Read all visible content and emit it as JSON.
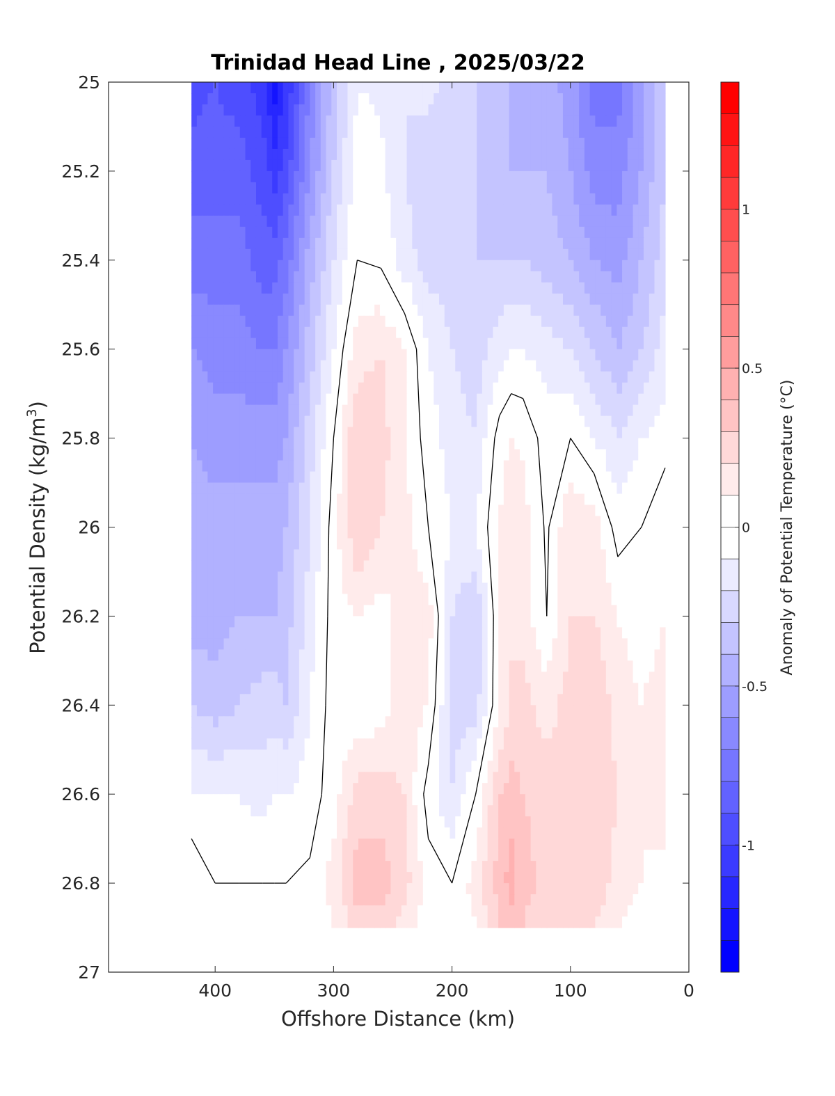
{
  "chart_data": {
    "type": "heatmap",
    "title": "Trinidad Head Line , 2025/03/22",
    "xlabel": "Offshore Distance (km)",
    "ylabel_main": "Potential Density (kg/m",
    "ylabel_sup": "3",
    "ylabel_close": ")",
    "colorbar_label": "Anomaly of Potential Temperature (°C)",
    "xlim": [
      490,
      0
    ],
    "ylim": [
      25,
      27
    ],
    "x_ticks": [
      "400",
      "300",
      "200",
      "100",
      "0"
    ],
    "y_ticks": [
      "25",
      "25.2",
      "25.4",
      "25.6",
      "25.8",
      "26",
      "26.2",
      "26.4",
      "26.6",
      "26.8",
      "27"
    ],
    "colorbar_range": [
      -1.4,
      1.4
    ],
    "colorbar_ticks": [
      "1",
      "0.5",
      "0",
      "-0.5",
      "-1"
    ],
    "colormap": "blue-white-red, 28 steps of 0.1 °C",
    "colors": {
      "negative_max": "#0000ff",
      "zero": "#ffffff",
      "positive_max": "#ff0000",
      "contour": "#000000"
    },
    "x": [
      420,
      400,
      380,
      360,
      350,
      340,
      320,
      300,
      280,
      260,
      240,
      220,
      200,
      180,
      160,
      150,
      140,
      120,
      100,
      80,
      60,
      40,
      20
    ],
    "y": [
      25.0,
      25.2,
      25.4,
      25.6,
      25.8,
      26.0,
      26.2,
      26.4,
      26.6,
      26.8,
      26.9
    ],
    "z": [
      [
        -0.95,
        -0.9,
        -0.95,
        -1.05,
        -1.25,
        -1.1,
        -0.7,
        -0.35,
        -0.1,
        -0.12,
        -0.2,
        -0.15,
        -0.25,
        -0.3,
        -0.35,
        -0.4,
        -0.45,
        -0.45,
        -0.55,
        -0.75,
        -0.75,
        -0.55,
        -0.3
      ],
      [
        -0.85,
        -0.85,
        -0.85,
        -0.95,
        -1.05,
        -0.95,
        -0.6,
        -0.3,
        -0.05,
        -0.08,
        -0.2,
        -0.3,
        -0.3,
        -0.3,
        -0.35,
        -0.4,
        -0.4,
        -0.4,
        -0.5,
        -0.65,
        -0.65,
        -0.5,
        -0.3
      ],
      [
        -0.75,
        -0.75,
        -0.75,
        -0.85,
        -0.85,
        -0.75,
        -0.45,
        -0.2,
        0.0,
        -0.02,
        -0.15,
        -0.25,
        -0.25,
        -0.3,
        -0.3,
        -0.3,
        -0.3,
        -0.35,
        -0.4,
        -0.5,
        -0.55,
        -0.4,
        -0.25
      ],
      [
        -0.6,
        -0.65,
        -0.65,
        -0.7,
        -0.7,
        -0.6,
        -0.35,
        -0.1,
        0.15,
        0.2,
        0.1,
        -0.1,
        -0.2,
        -0.25,
        -0.15,
        -0.1,
        -0.1,
        -0.15,
        -0.2,
        -0.3,
        -0.4,
        -0.3,
        -0.15
      ],
      [
        -0.5,
        -0.55,
        -0.55,
        -0.55,
        -0.55,
        -0.5,
        -0.25,
        0.0,
        0.3,
        0.25,
        0.1,
        -0.05,
        -0.15,
        -0.2,
        0.05,
        0.1,
        0.08,
        -0.05,
        0.0,
        -0.1,
        -0.2,
        -0.1,
        -0.05
      ],
      [
        -0.45,
        -0.45,
        -0.45,
        -0.45,
        -0.45,
        -0.4,
        -0.2,
        0.05,
        0.3,
        0.2,
        0.15,
        0.0,
        -0.1,
        -0.1,
        0.1,
        0.2,
        0.15,
        -0.02,
        0.2,
        0.15,
        -0.05,
        0.0,
        0.1
      ],
      [
        -0.45,
        -0.45,
        -0.4,
        -0.4,
        -0.4,
        -0.35,
        -0.15,
        0.05,
        0.1,
        0.05,
        0.15,
        0.15,
        -0.2,
        -0.3,
        0.1,
        0.2,
        0.15,
        0.0,
        0.2,
        0.2,
        0.1,
        0.05,
        0.1
      ],
      [
        -0.3,
        -0.35,
        -0.3,
        -0.25,
        -0.25,
        -0.3,
        -0.1,
        0.05,
        0.0,
        0.05,
        0.15,
        0.1,
        -0.25,
        -0.25,
        0.1,
        0.2,
        0.25,
        0.15,
        0.25,
        0.3,
        0.15,
        0.1,
        0.15
      ],
      [
        -0.1,
        -0.1,
        -0.1,
        -0.15,
        -0.1,
        -0.1,
        -0.05,
        0.05,
        0.25,
        0.25,
        0.2,
        -0.05,
        -0.2,
        0.0,
        0.3,
        0.35,
        0.3,
        0.25,
        0.25,
        0.3,
        0.2,
        0.1,
        0.2
      ],
      [
        0.1,
        0.0,
        0.0,
        0.0,
        0.0,
        0.0,
        0.02,
        0.15,
        0.35,
        0.35,
        0.25,
        0.05,
        0.0,
        0.15,
        0.35,
        0.45,
        0.35,
        0.25,
        0.3,
        0.3,
        0.15,
        0.1,
        0.05
      ],
      [
        0.05,
        0.0,
        0.0,
        0.0,
        0.0,
        0.0,
        0.0,
        0.1,
        0.25,
        0.25,
        0.15,
        0.05,
        0.0,
        0.1,
        0.3,
        0.35,
        0.3,
        0.2,
        0.25,
        0.2,
        0.1,
        0.05,
        0.0
      ]
    ]
  }
}
